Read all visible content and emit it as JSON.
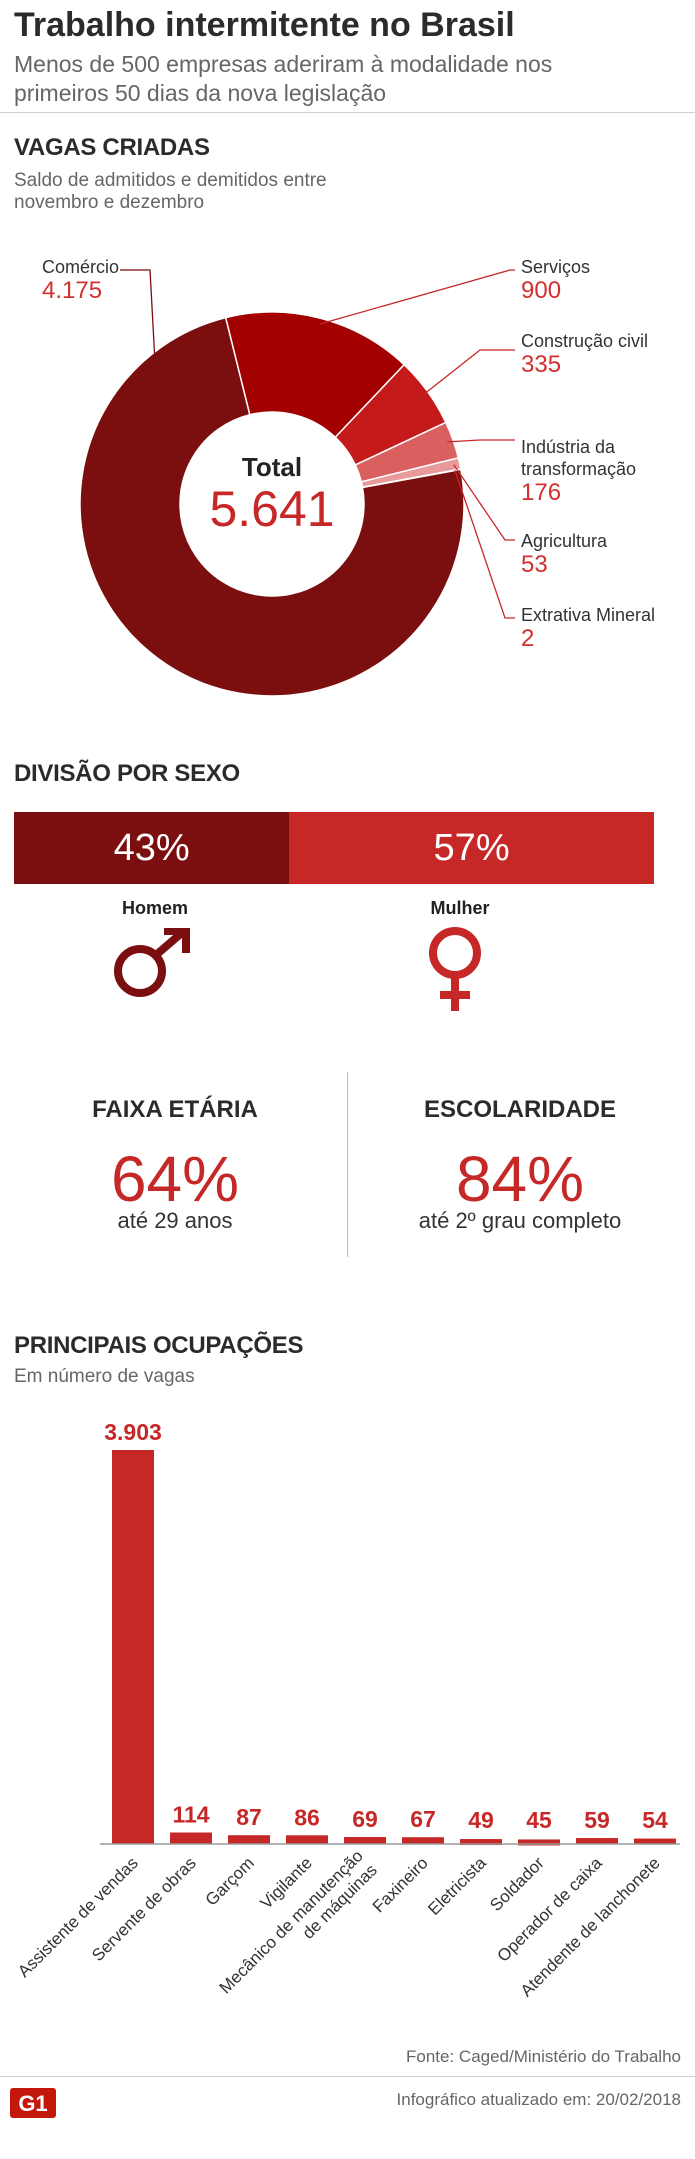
{
  "header": {
    "title": "Trabalho intermitente no Brasil",
    "subtitle": "Menos de 500 empresas aderiram à modalidade nos primeiros 50 dias da nova legislação"
  },
  "vagas": {
    "heading": "VAGAS CRIADAS",
    "subheading": "Saldo de admitidos e demitidos entre novembro e dezembro",
    "total_label": "Total",
    "total_value": "5.641"
  },
  "sexo": {
    "heading": "DIVISÃO POR SEXO",
    "homem_pct": "43%",
    "mulher_pct": "57%",
    "homem_label": "Homem",
    "mulher_label": "Mulher",
    "homem_symbol": "male-symbol",
    "mulher_symbol": "female-symbol"
  },
  "faixa": {
    "heading": "FAIXA ETÁRIA",
    "value": "64%",
    "caption": "até 29 anos"
  },
  "escolaridade": {
    "heading": "ESCOLARIDADE",
    "value": "84%",
    "caption": "até 2º grau completo"
  },
  "ocupacoes": {
    "heading": "PRINCIPAIS OCUPAÇÕES",
    "subheading": "Em número de vagas"
  },
  "footer": {
    "source": "Fonte: Caged/Ministério do Trabalho",
    "updated": "Infográfico atualizado em: 20/02/2018",
    "logo": "G1"
  },
  "colors": {
    "dark_red": "#7b0e0e",
    "red": "#c62828",
    "mid_red": "#d32f2f"
  },
  "chart_data": [
    {
      "type": "pie",
      "title": "VAGAS CRIADAS",
      "categories": [
        "Comércio",
        "Serviços",
        "Construção civil",
        "Indústria da transformação",
        "Agricultura",
        "Extrativa Mineral"
      ],
      "display_values": [
        "4.175",
        "900",
        "335",
        "176",
        "53",
        "2"
      ],
      "values": [
        4175,
        900,
        335,
        176,
        53,
        2
      ],
      "colors": [
        "#7b0e0e",
        "#a30000",
        "#c41a1a",
        "#d9605f",
        "#e89a9a",
        "#f3c6c6"
      ],
      "total": 5641
    },
    {
      "type": "bar",
      "title": "PRINCIPAIS OCUPAÇÕES",
      "categories": [
        "Assistente de vendas",
        "Servente de obras",
        "Garçom",
        "Vigilante",
        "Mecânico de manutenção de máquinas",
        "Faxineiro",
        "Eletricista",
        "Soldador",
        "Operador de caixa",
        "Atendente de lanchonete"
      ],
      "display_values": [
        "3.903",
        "114",
        "87",
        "86",
        "69",
        "67",
        "49",
        "45",
        "59",
        "54"
      ],
      "values": [
        3903,
        114,
        87,
        86,
        69,
        67,
        49,
        45,
        59,
        54
      ],
      "ylim": [
        0,
        3903
      ]
    }
  ]
}
